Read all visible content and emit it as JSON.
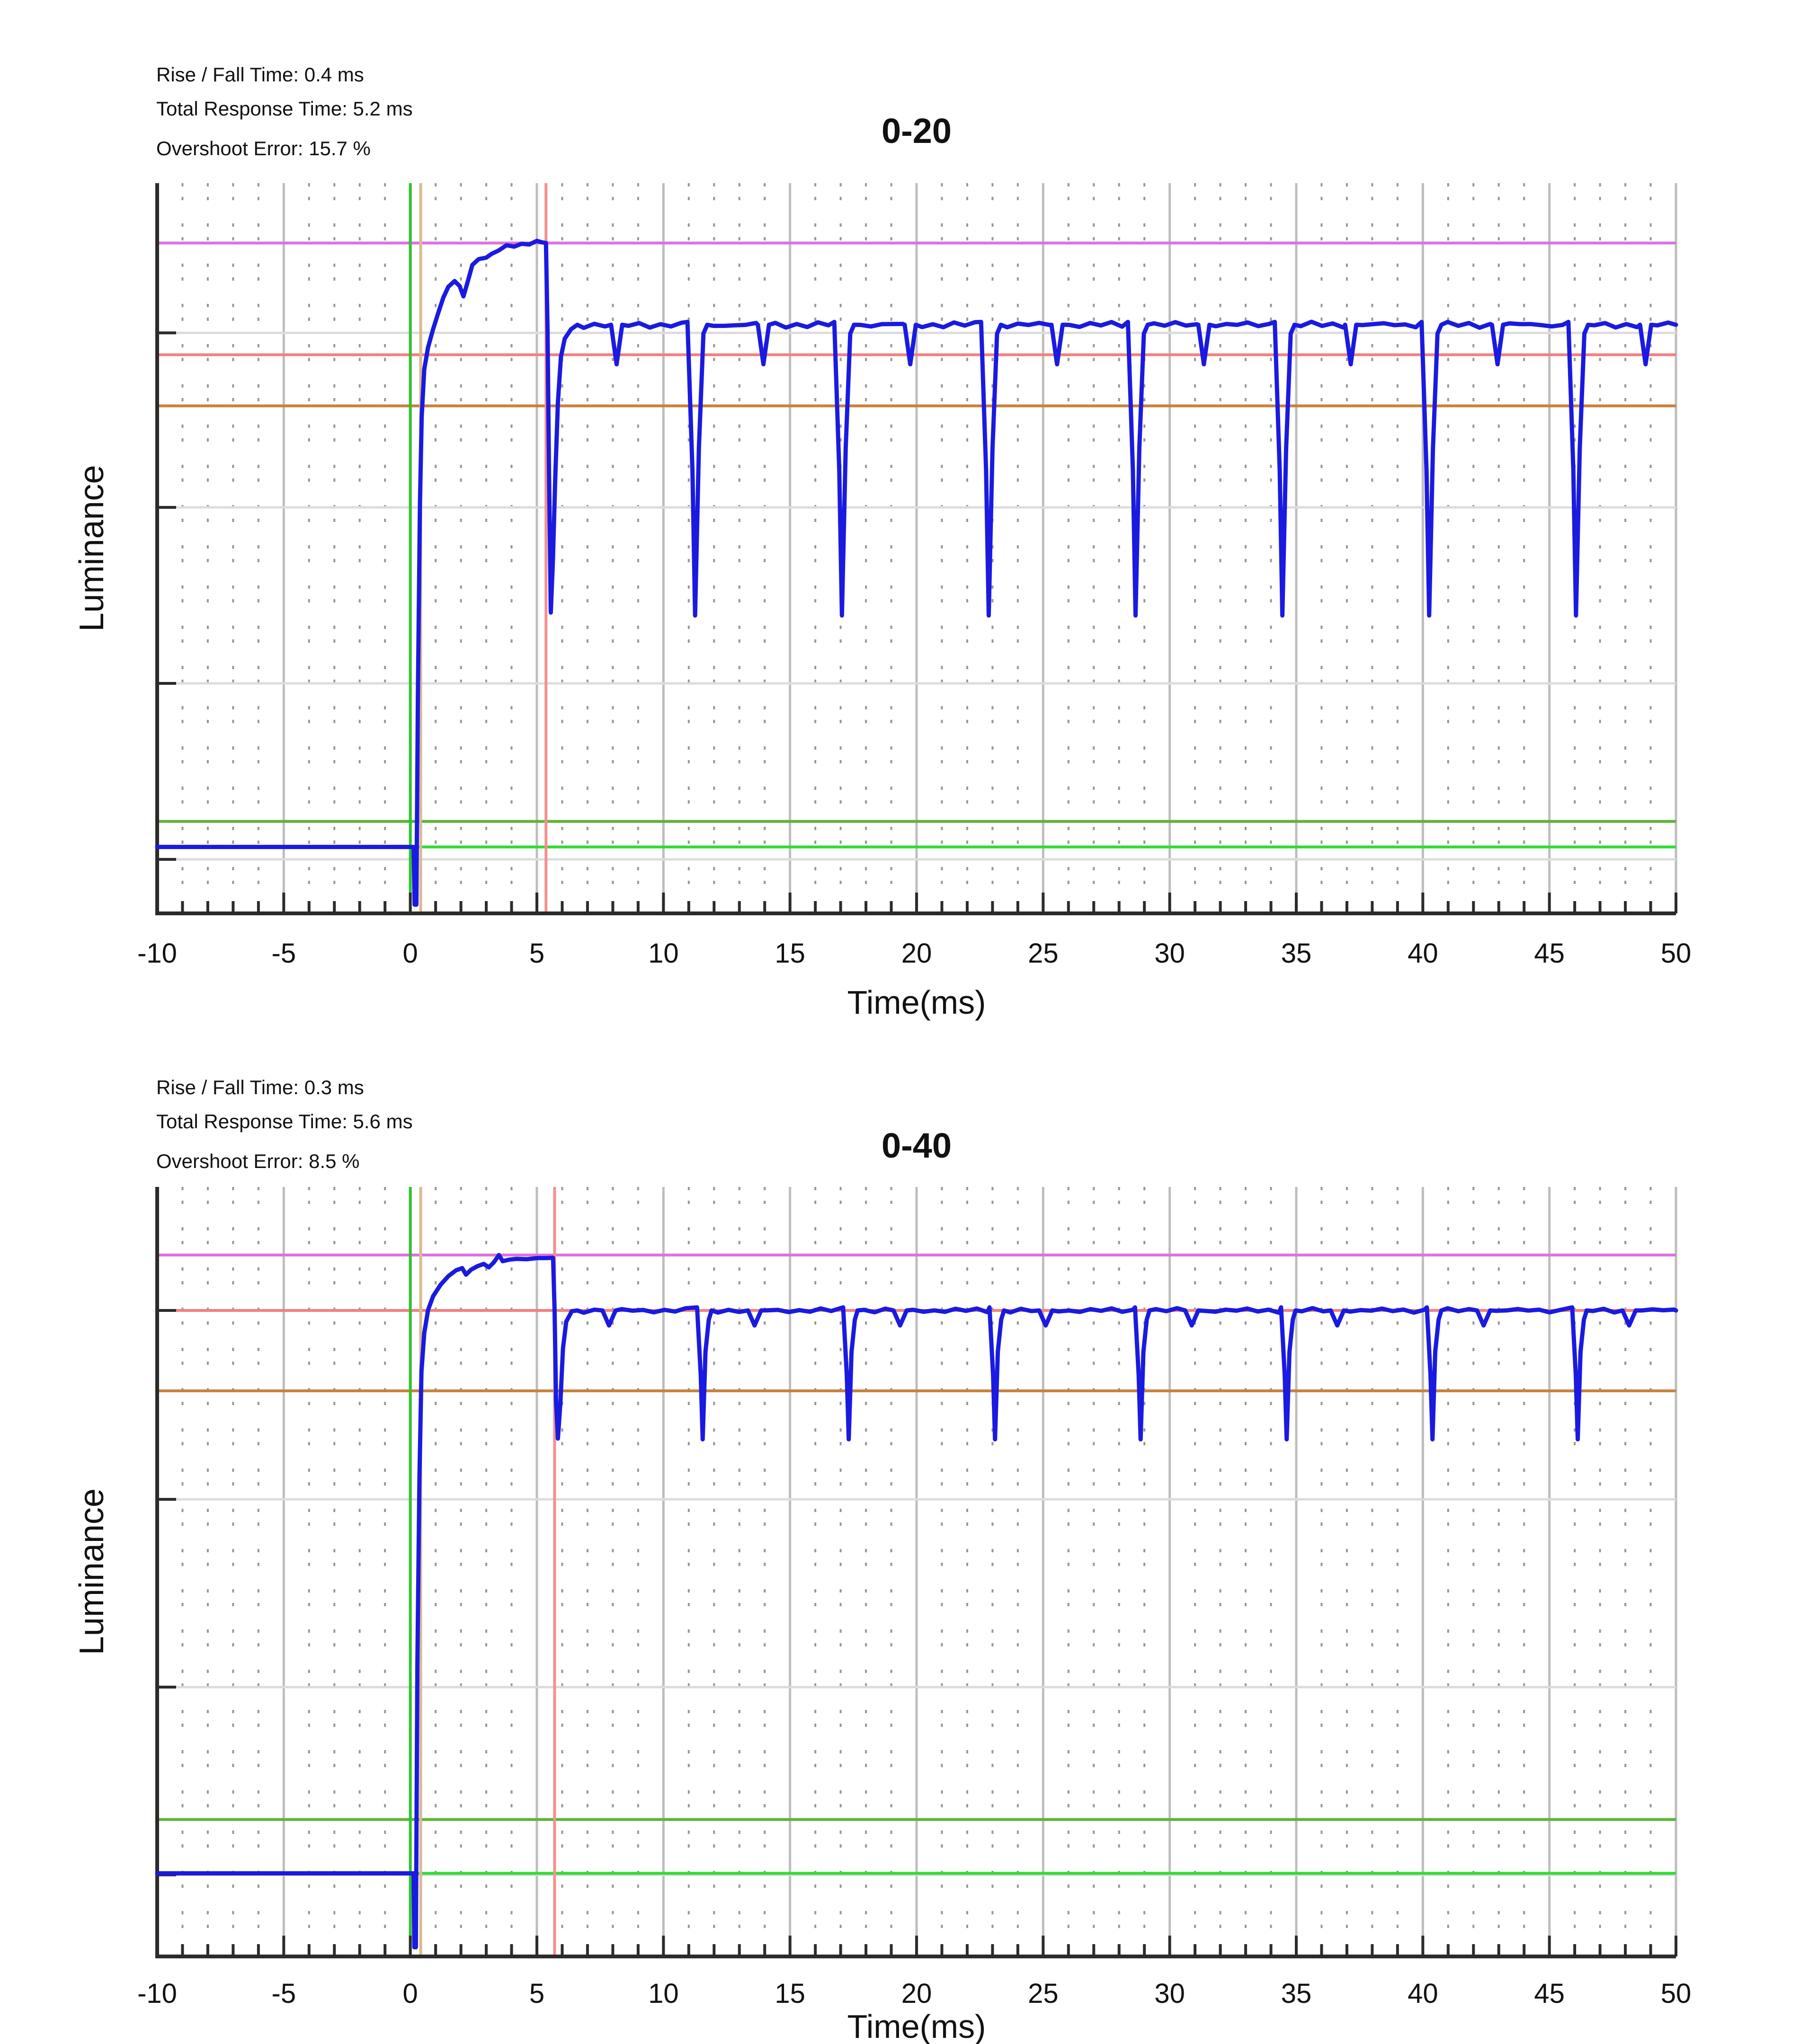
{
  "figure": {
    "description": "Display luminance response-time measurement, two transitions",
    "background": "#ffffff"
  },
  "colors": {
    "background": "#ffffff",
    "axis": "#2b2b2b",
    "text": "#111111",
    "grid_major_h": "#dcdcdc",
    "grid_major_v": "#bdbdbd",
    "grid_minor": "#989898",
    "trace_blue": "#1a1ae0",
    "overshoot_magenta": "#de71de",
    "target_salmon": "#f28080",
    "threshold_orange": "#c8823a",
    "threshold_olive_green": "#5cb434",
    "start_bright_green": "#30dc30",
    "marker_green": "#2cc42c",
    "marker_tan": "#d9b98f",
    "marker_red": "#f59090"
  },
  "chart_data": [
    {
      "type": "line",
      "title": "0-20",
      "stats": {
        "rise_fall_time": "Rise / Fall Time: 0.4 ms",
        "total_response_time": "Total Response Time: 5.2 ms",
        "overshoot_error": "Overshoot Error: 15.7 %"
      },
      "xlabel": "Time(ms)",
      "ylabel": "Luminance",
      "xlim": [
        -10,
        50
      ],
      "ylim": [
        0,
        1
      ],
      "x_major_ticks": [
        -10,
        -5,
        0,
        5,
        10,
        15,
        20,
        25,
        30,
        35,
        40,
        45,
        50
      ],
      "x_minor_step": 1,
      "grid": "on",
      "minor_grid": "on",
      "legend": "none",
      "y_gridlines": [
        0.795,
        0.556,
        0.315,
        0.074
      ],
      "ref_lines_h": [
        {
          "name": "overshoot-peak-level",
          "v": 0.918,
          "color": "overshoot_magenta"
        },
        {
          "name": "target-level",
          "v": 0.765,
          "color": "target_salmon"
        },
        {
          "name": "threshold-90pct",
          "v": 0.695,
          "color": "threshold_orange"
        },
        {
          "name": "threshold-10pct",
          "v": 0.126,
          "color": "threshold_olive_green"
        },
        {
          "name": "start-level",
          "v": 0.091,
          "color": "start_bright_green"
        }
      ],
      "ref_lines_v": [
        {
          "name": "transition-start-marker",
          "t": 0,
          "color": "marker_green"
        },
        {
          "name": "rise-time-marker",
          "t": 0.41,
          "color": "marker_tan"
        },
        {
          "name": "response-time-marker",
          "t": 5.36,
          "color": "marker_red"
        }
      ],
      "trace": {
        "color": "trace_blue",
        "baseline": {
          "from": -10,
          "to": 0.13,
          "v": 0.091
        },
        "rise": [
          [
            0.17,
            0.012
          ],
          [
            0.24,
            0.012
          ],
          [
            0.3,
            0.3
          ],
          [
            0.38,
            0.56
          ],
          [
            0.45,
            0.68
          ],
          [
            0.55,
            0.745
          ],
          [
            0.7,
            0.775
          ],
          [
            0.9,
            0.8
          ],
          [
            1.1,
            0.822
          ],
          [
            1.3,
            0.843
          ],
          [
            1.5,
            0.858
          ],
          [
            1.75,
            0.866
          ],
          [
            1.95,
            0.859
          ],
          [
            2.1,
            0.845
          ],
          [
            2.25,
            0.863
          ],
          [
            2.45,
            0.888
          ],
          [
            2.7,
            0.896
          ],
          [
            3.0,
            0.898
          ],
          [
            3.2,
            0.903
          ],
          [
            3.5,
            0.908
          ],
          [
            3.8,
            0.915
          ],
          [
            4.1,
            0.913
          ],
          [
            4.4,
            0.917
          ],
          [
            4.7,
            0.916
          ],
          [
            5.0,
            0.921
          ],
          [
            5.2,
            0.919
          ],
          [
            5.36,
            0.918
          ]
        ],
        "fall": [
          [
            5.42,
            0.8
          ],
          [
            5.48,
            0.6
          ],
          [
            5.55,
            0.412
          ],
          [
            5.63,
            0.48
          ],
          [
            5.73,
            0.6
          ],
          [
            5.83,
            0.7
          ],
          [
            5.95,
            0.762
          ],
          [
            6.1,
            0.787
          ],
          [
            6.35,
            0.8
          ],
          [
            6.6,
            0.806
          ]
        ],
        "steady_v": 0.806,
        "wiggle": 0.0042,
        "dips": {
          "times": [
            11.25,
            17.05,
            22.85,
            28.65,
            34.45,
            40.25,
            46.05
          ],
          "bottom_v": 0.408,
          "half_width": 0.3
        },
        "notches": {
          "times": [
            8.15,
            13.95,
            19.75,
            25.55,
            31.35,
            37.15,
            42.95,
            48.8
          ],
          "bottom_v": 0.752,
          "half_width": 0.22
        },
        "end": 50
      }
    },
    {
      "type": "line",
      "title": "0-40",
      "stats": {
        "rise_fall_time": "Rise / Fall Time: 0.3 ms",
        "total_response_time": "Total Response Time: 5.6 ms",
        "overshoot_error": "Overshoot Error: 8.5 %"
      },
      "xlabel": "Time(ms)",
      "ylabel": "Luminance",
      "xlim": [
        -10,
        50
      ],
      "ylim": [
        0,
        1
      ],
      "x_major_ticks": [
        -10,
        -5,
        0,
        5,
        10,
        15,
        20,
        25,
        30,
        35,
        40,
        45,
        50
      ],
      "x_minor_step": 1,
      "grid": "on",
      "minor_grid": "on",
      "legend": "none",
      "y_gridlines": [
        0.8395,
        0.594,
        0.35,
        0.106
      ],
      "ref_lines_h": [
        {
          "name": "overshoot-peak-level",
          "v": 0.9115,
          "color": "overshoot_magenta"
        },
        {
          "name": "target-level",
          "v": 0.8395,
          "color": "target_salmon"
        },
        {
          "name": "threshold-90pct",
          "v": 0.735,
          "color": "threshold_orange"
        },
        {
          "name": "threshold-10pct",
          "v": 0.178,
          "color": "threshold_olive_green"
        },
        {
          "name": "start-level",
          "v": 0.108,
          "color": "start_bright_green"
        }
      ],
      "ref_lines_v": [
        {
          "name": "transition-start-marker",
          "t": 0,
          "color": "marker_green"
        },
        {
          "name": "rise-time-marker",
          "t": 0.41,
          "color": "marker_tan"
        },
        {
          "name": "response-time-marker",
          "t": 5.7,
          "color": "marker_red"
        }
      ],
      "trace": {
        "color": "trace_blue",
        "baseline": {
          "from": -10,
          "to": 0.13,
          "v": 0.108
        },
        "rise": [
          [
            0.16,
            0.012
          ],
          [
            0.22,
            0.012
          ],
          [
            0.28,
            0.38
          ],
          [
            0.36,
            0.62
          ],
          [
            0.44,
            0.76
          ],
          [
            0.55,
            0.81
          ],
          [
            0.7,
            0.84
          ],
          [
            0.9,
            0.858
          ],
          [
            1.2,
            0.873
          ],
          [
            1.5,
            0.884
          ],
          [
            1.8,
            0.8915
          ],
          [
            2.05,
            0.8945
          ],
          [
            2.2,
            0.886
          ],
          [
            2.4,
            0.8925
          ],
          [
            2.65,
            0.897
          ],
          [
            2.9,
            0.9
          ],
          [
            3.1,
            0.8955
          ],
          [
            3.3,
            0.902
          ],
          [
            3.5,
            0.9115
          ],
          [
            3.65,
            0.9035
          ],
          [
            3.9,
            0.9055
          ],
          [
            4.2,
            0.9065
          ],
          [
            4.6,
            0.906
          ],
          [
            5.0,
            0.9075
          ],
          [
            5.35,
            0.9075
          ],
          [
            5.64,
            0.908
          ]
        ],
        "fall": [
          [
            5.7,
            0.84
          ],
          [
            5.76,
            0.72
          ],
          [
            5.83,
            0.673
          ],
          [
            5.93,
            0.72
          ],
          [
            6.03,
            0.79
          ],
          [
            6.16,
            0.825
          ],
          [
            6.38,
            0.8385
          ],
          [
            6.6,
            0.8395
          ]
        ],
        "steady_v": 0.8395,
        "wiggle": 0.003,
        "dips": {
          "times": [
            11.55,
            17.32,
            23.1,
            28.85,
            34.62,
            40.38,
            46.12
          ],
          "bottom_v": 0.672,
          "half_width": 0.22
        },
        "notches": {
          "times": [
            7.85,
            13.6,
            19.35,
            25.1,
            30.87,
            36.62,
            42.4,
            48.15
          ],
          "bottom_v": 0.82,
          "half_width": 0.26
        },
        "end": 50
      }
    }
  ]
}
